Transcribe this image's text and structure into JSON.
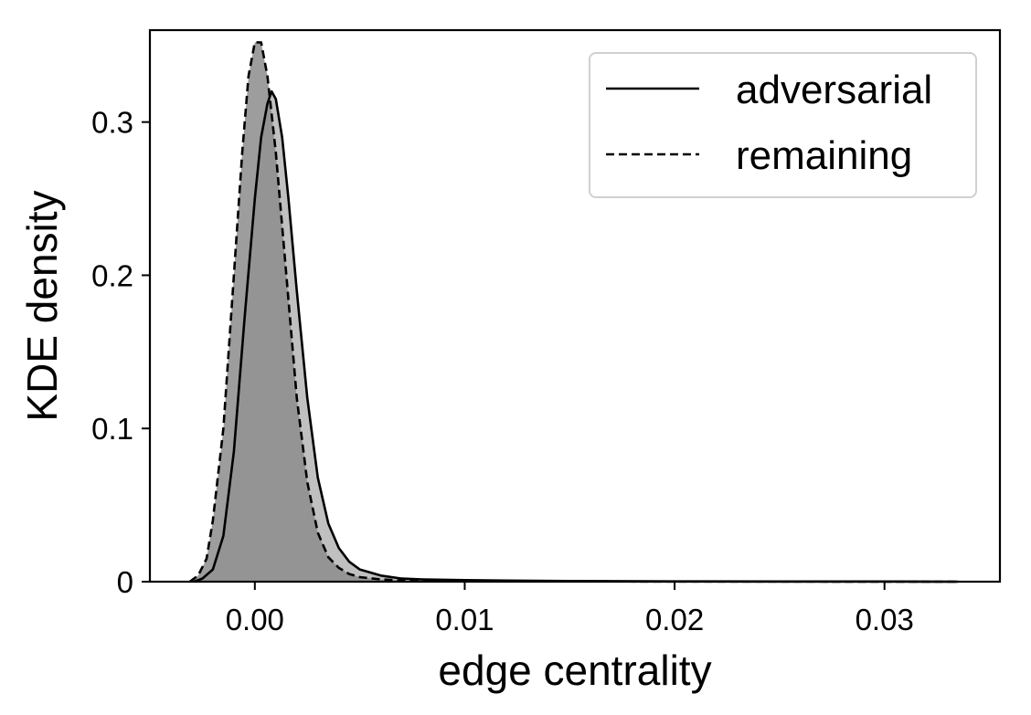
{
  "chart_data": {
    "type": "area",
    "xlabel": "edge centrality",
    "ylabel": "KDE density",
    "xlim": [
      -0.005,
      0.0355
    ],
    "ylim": [
      0,
      0.36
    ],
    "xticks": [
      0.0,
      0.01,
      0.02,
      0.03
    ],
    "xtick_labels": [
      "0.00",
      "0.01",
      "0.02",
      "0.03"
    ],
    "yticks": [
      0,
      0.1,
      0.2,
      0.3
    ],
    "ytick_labels": [
      "0",
      "0.1",
      "0.2",
      "0.3"
    ],
    "grid": false,
    "legend_position": "top-right",
    "series": [
      {
        "name": "adversarial",
        "line_style": "solid",
        "fill_color": "#c0c0c0",
        "line_color": "#000000",
        "x": [
          -0.0029,
          -0.0025,
          -0.002,
          -0.0015,
          -0.001,
          -0.0005,
          0.0,
          0.0003,
          0.0006,
          0.0008,
          0.001,
          0.0013,
          0.0016,
          0.002,
          0.0025,
          0.003,
          0.0035,
          0.004,
          0.0045,
          0.005,
          0.006,
          0.007,
          0.008,
          0.01,
          0.012,
          0.015,
          0.02,
          0.025,
          0.03,
          0.0335
        ],
        "y": [
          0.0,
          0.002,
          0.008,
          0.03,
          0.085,
          0.17,
          0.25,
          0.29,
          0.312,
          0.32,
          0.315,
          0.29,
          0.25,
          0.19,
          0.12,
          0.068,
          0.038,
          0.022,
          0.013,
          0.008,
          0.004,
          0.002,
          0.0015,
          0.001,
          0.0007,
          0.0004,
          0.0002,
          0.0001,
          0.0001,
          0.0
        ]
      },
      {
        "name": "remaining",
        "line_style": "dashed",
        "fill_color": "#8c8c8c",
        "line_color": "#000000",
        "x": [
          -0.0031,
          -0.0027,
          -0.0023,
          -0.002,
          -0.0015,
          -0.001,
          -0.0006,
          -0.0003,
          0.0,
          0.0003,
          0.0006,
          0.001,
          0.0015,
          0.002,
          0.0025,
          0.003,
          0.0035,
          0.004,
          0.0045,
          0.005,
          0.006,
          0.007,
          0.008,
          0.01,
          0.015,
          0.02,
          0.025,
          0.03,
          0.0335
        ],
        "y": [
          0.0,
          0.004,
          0.015,
          0.04,
          0.1,
          0.2,
          0.28,
          0.33,
          0.352,
          0.352,
          0.33,
          0.28,
          0.2,
          0.12,
          0.065,
          0.032,
          0.016,
          0.009,
          0.005,
          0.003,
          0.0015,
          0.0008,
          0.0005,
          0.0003,
          0.0002,
          0.0001,
          0.0001,
          0.0,
          0.0
        ]
      }
    ]
  }
}
